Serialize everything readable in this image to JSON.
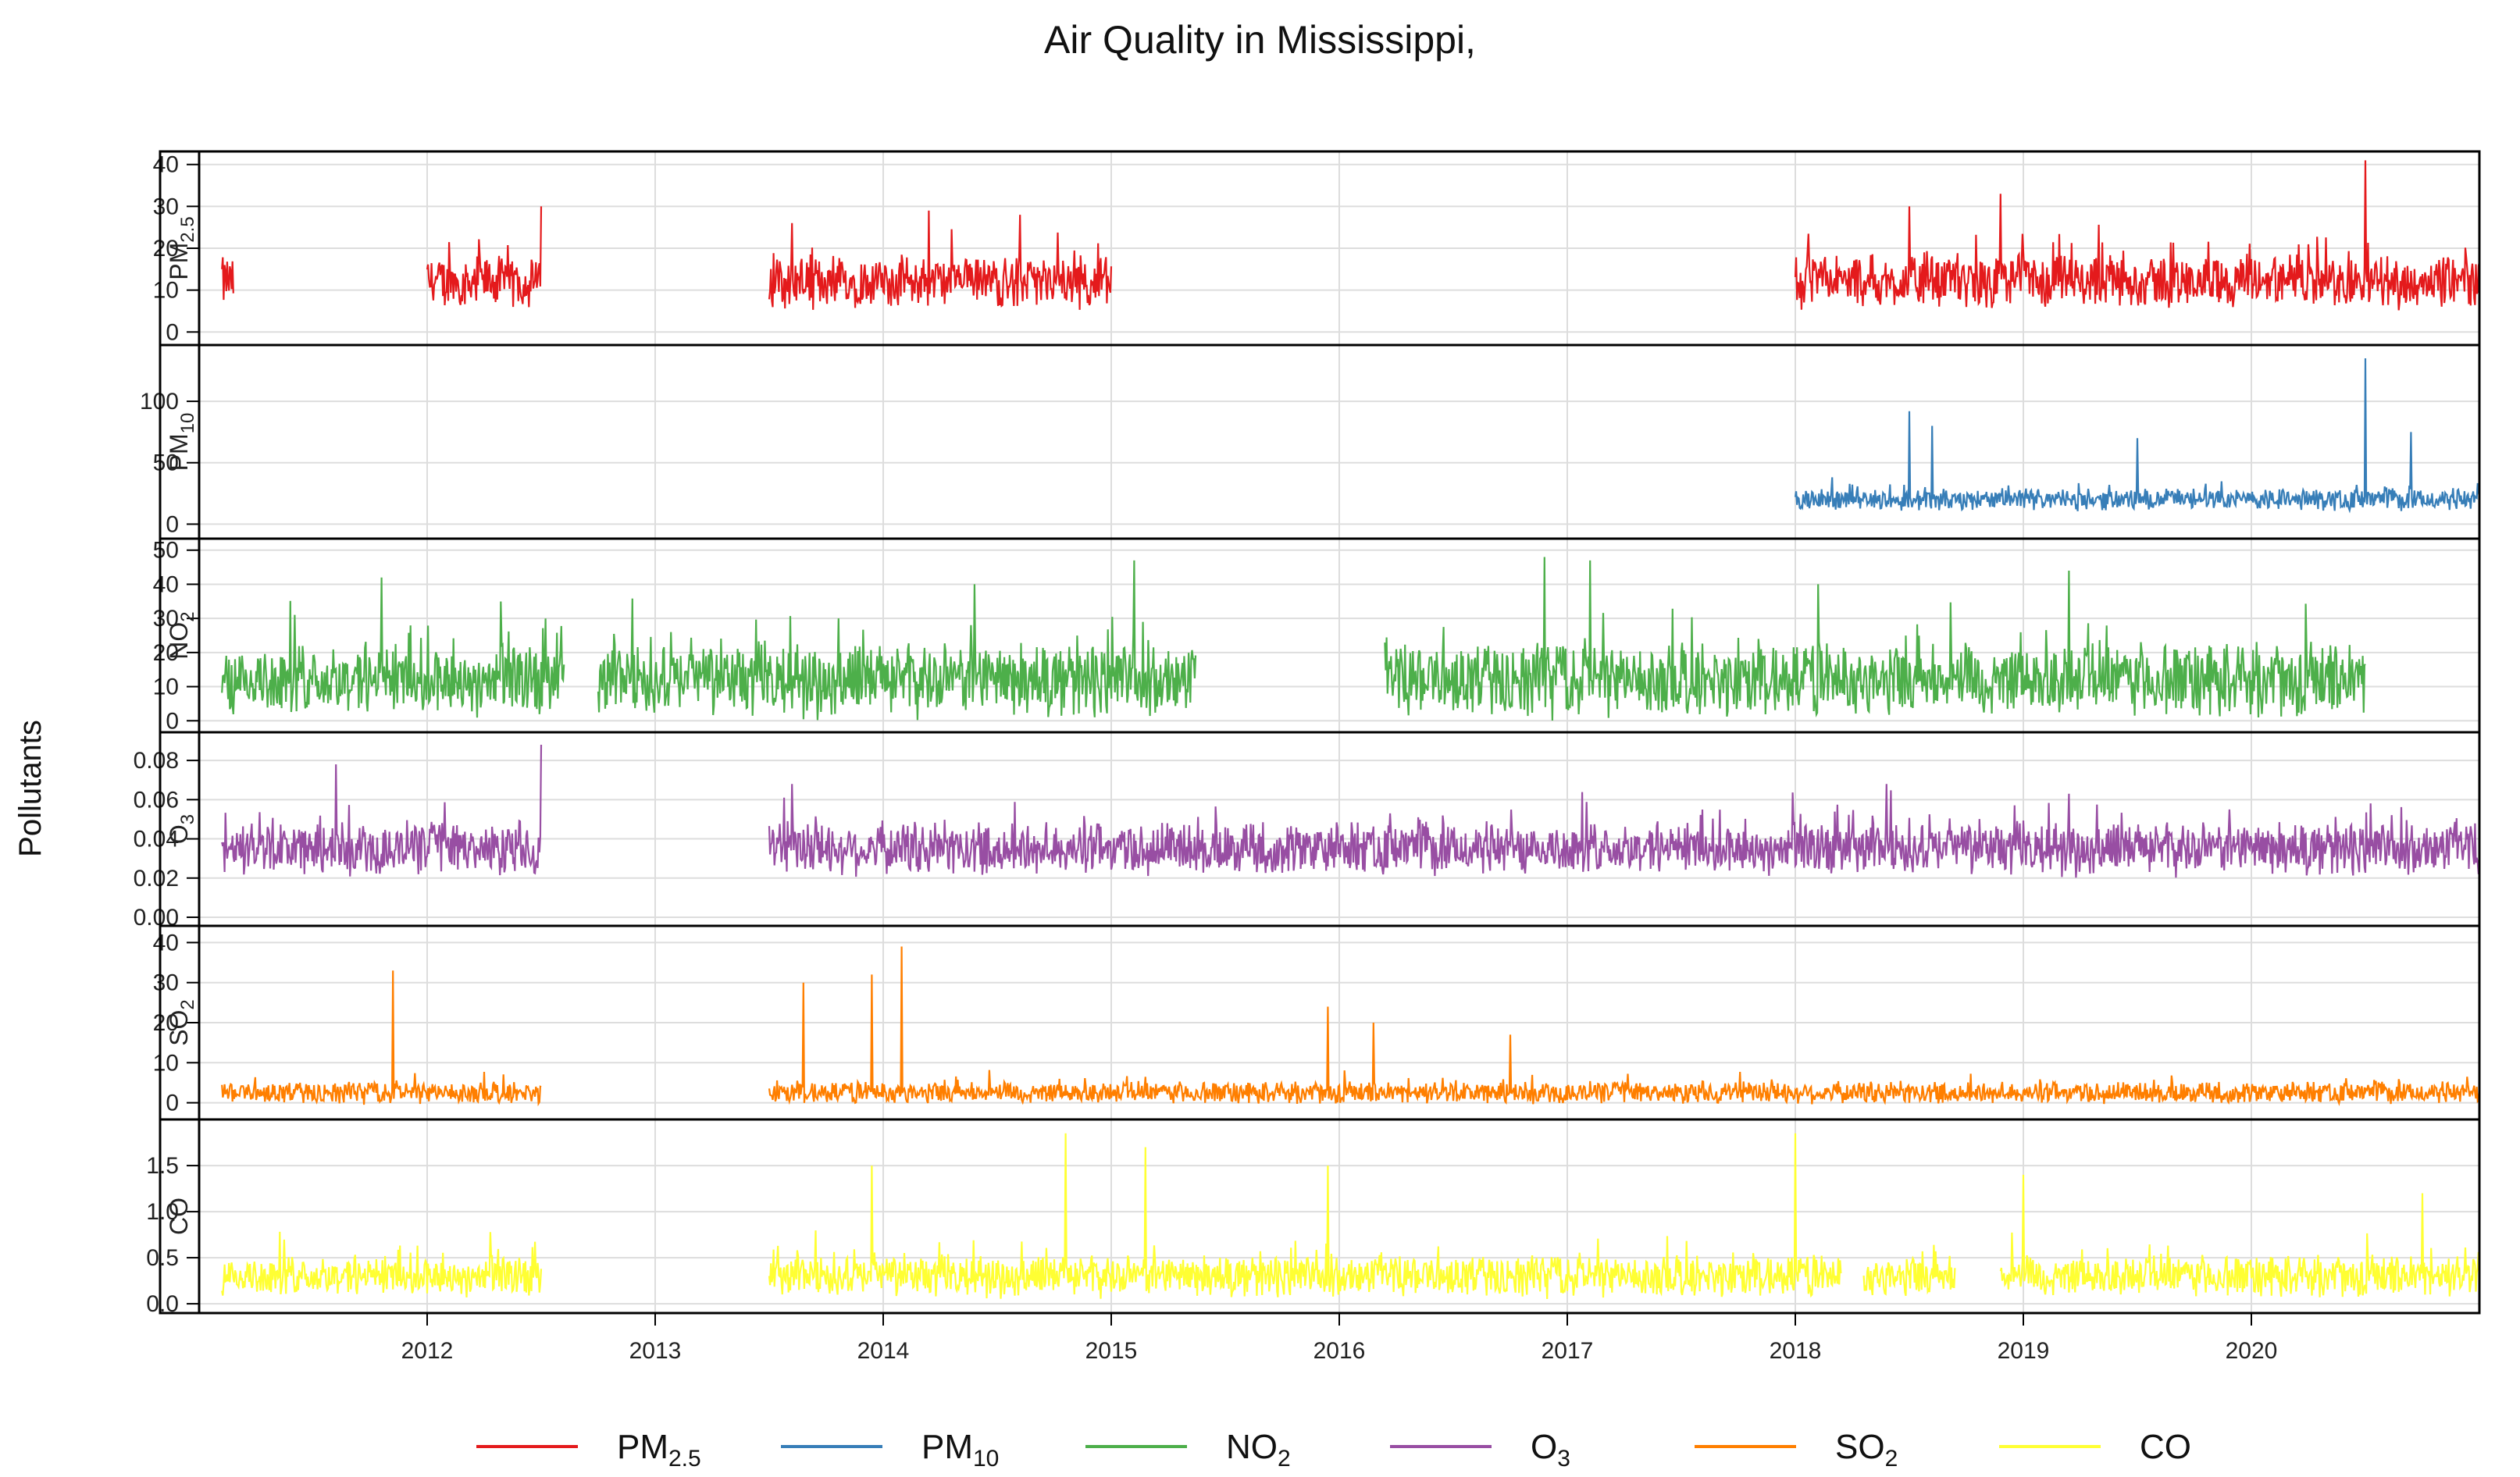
{
  "chart_data": {
    "type": "line",
    "title": "Air Quality in Mississippi,",
    "ylabel": "Pollutants",
    "xlabel": "",
    "x_range": [
      2011.0,
      2021.0
    ],
    "x_ticks": [
      "2012",
      "2013",
      "2014",
      "2015",
      "2016",
      "2017",
      "2018",
      "2019",
      "2020"
    ],
    "grid": true,
    "legend_position": "bottom",
    "colors": {
      "pm25": "#e41a1c",
      "pm10": "#377eb8",
      "no2": "#4daf4a",
      "o3": "#984ea3",
      "so2": "#ff7f00",
      "co": "#ffff33",
      "grid": "#dddddd",
      "frame": "#000000"
    },
    "panels": [
      {
        "key": "pm25",
        "label_main": "PM",
        "label_sub": "2.5",
        "ylim": [
          -2,
          42
        ],
        "y_ticks": [
          0,
          10,
          20,
          30,
          40
        ],
        "y_tick_labels": [
          "0",
          "10",
          "20",
          "30",
          "40"
        ],
        "segments": [
          [
            2011.1,
            2011.15
          ],
          [
            2012.0,
            2012.5
          ],
          [
            2013.5,
            2015.0
          ],
          [
            2018.0,
            2021.0
          ]
        ],
        "base": 12,
        "amplitude": 7,
        "peaks": [
          [
            2011.1,
            15
          ],
          [
            2012.5,
            30
          ],
          [
            2013.6,
            26
          ],
          [
            2014.2,
            29
          ],
          [
            2014.6,
            28
          ],
          [
            2018.5,
            30
          ],
          [
            2018.9,
            33
          ],
          [
            2020.5,
            41
          ]
        ]
      },
      {
        "key": "pm10",
        "label_main": "PM",
        "label_sub": "10",
        "ylim": [
          -8,
          142
        ],
        "y_ticks": [
          0,
          50,
          100
        ],
        "y_tick_labels": [
          "0",
          "50",
          "100"
        ],
        "segments": [
          [
            2018.0,
            2021.0
          ]
        ],
        "base": 20,
        "amplitude": 10,
        "peaks": [
          [
            2018.5,
            92
          ],
          [
            2018.6,
            80
          ],
          [
            2019.5,
            70
          ],
          [
            2020.5,
            135
          ],
          [
            2020.7,
            75
          ]
        ]
      },
      {
        "key": "no2",
        "label_main": "NO",
        "label_sub": "2",
        "ylim": [
          -2,
          52
        ],
        "y_ticks": [
          0,
          10,
          20,
          30,
          40,
          50
        ],
        "y_tick_labels": [
          "0",
          "10",
          "20",
          "30",
          "40",
          "50"
        ],
        "segments": [
          [
            2011.1,
            2012.6
          ],
          [
            2012.75,
            2015.37
          ],
          [
            2016.2,
            2020.5
          ]
        ],
        "base": 12,
        "amplitude": 12,
        "peaks": [
          [
            2011.8,
            42
          ],
          [
            2014.4,
            40
          ],
          [
            2015.1,
            47
          ],
          [
            2016.9,
            48
          ],
          [
            2017.1,
            47
          ],
          [
            2019.2,
            44
          ],
          [
            2018.1,
            40
          ]
        ]
      },
      {
        "key": "o3",
        "label_main": "O",
        "label_sub": "3",
        "ylim": [
          -0.002,
          0.092
        ],
        "y_ticks": [
          0.0,
          0.02,
          0.04,
          0.06,
          0.08
        ],
        "y_tick_labels": [
          "0.00",
          "0.02",
          "0.04",
          "0.06",
          "0.08"
        ],
        "segments": [
          [
            2011.1,
            2012.5
          ],
          [
            2013.5,
            2021.0
          ]
        ],
        "base": 0.035,
        "amplitude": 0.015,
        "peaks": [
          [
            2011.6,
            0.078
          ],
          [
            2012.5,
            0.088
          ],
          [
            2013.6,
            0.068
          ],
          [
            2018.4,
            0.068
          ],
          [
            2019.2,
            0.063
          ]
        ]
      },
      {
        "key": "so2",
        "label_main": "SO",
        "label_sub": "2",
        "ylim": [
          -3,
          43
        ],
        "y_ticks": [
          0,
          10,
          20,
          30,
          40
        ],
        "y_tick_labels": [
          "0",
          "10",
          "20",
          "30",
          "40"
        ],
        "segments": [
          [
            2011.1,
            2012.5
          ],
          [
            2013.5,
            2021.0
          ]
        ],
        "base": 2.5,
        "amplitude": 3,
        "peaks": [
          [
            2011.85,
            33
          ],
          [
            2013.65,
            30
          ],
          [
            2013.95,
            32
          ],
          [
            2014.08,
            39
          ],
          [
            2015.95,
            24
          ],
          [
            2016.15,
            20
          ],
          [
            2016.75,
            17
          ]
        ]
      },
      {
        "key": "co",
        "label_main": "CO",
        "label_sub": "",
        "ylim": [
          -0.05,
          1.95
        ],
        "y_ticks": [
          0.0,
          0.5,
          1.0,
          1.5
        ],
        "y_tick_labels": [
          "0.0",
          "0.5",
          "1.0",
          "1.5"
        ],
        "segments": [
          [
            2011.1,
            2012.5
          ],
          [
            2013.5,
            2018.2
          ],
          [
            2018.3,
            2018.7
          ],
          [
            2018.9,
            2021.0
          ]
        ],
        "base": 0.3,
        "amplitude": 0.25,
        "peaks": [
          [
            2014.8,
            1.85
          ],
          [
            2015.15,
            1.7
          ],
          [
            2018.0,
            1.85
          ],
          [
            2013.95,
            1.5
          ],
          [
            2015.95,
            1.5
          ],
          [
            2019.0,
            1.4
          ],
          [
            2020.75,
            1.2
          ]
        ]
      }
    ],
    "legend": [
      {
        "key": "pm25",
        "main": "PM",
        "sub": "2.5"
      },
      {
        "key": "pm10",
        "main": "PM",
        "sub": "10"
      },
      {
        "key": "no2",
        "main": "NO",
        "sub": "2"
      },
      {
        "key": "o3",
        "main": "O",
        "sub": "3"
      },
      {
        "key": "so2",
        "main": "SO",
        "sub": "2"
      },
      {
        "key": "co",
        "main": "CO",
        "sub": ""
      }
    ]
  }
}
